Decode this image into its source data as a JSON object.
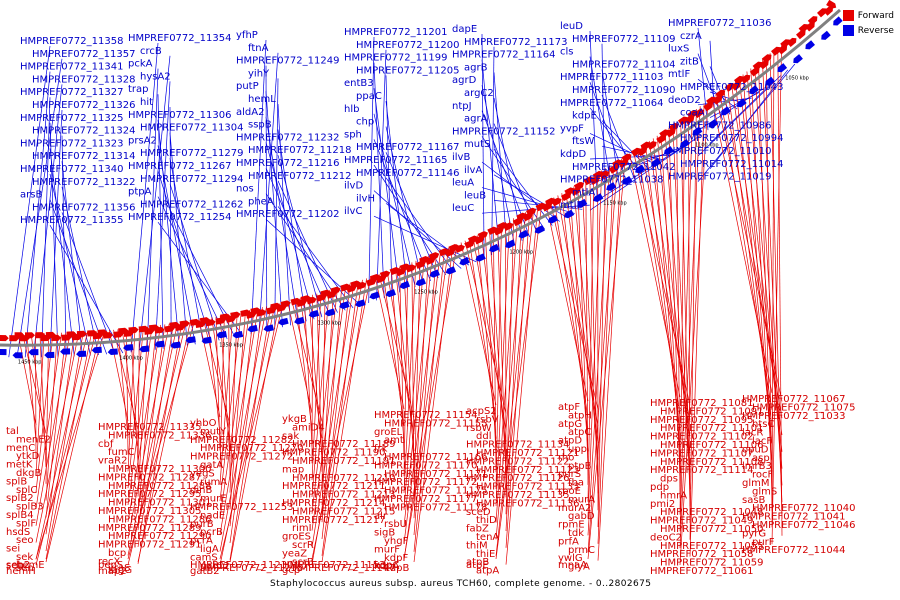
{
  "legend": {
    "items": [
      {
        "label": "Forward",
        "color": "#e60000"
      },
      {
        "label": "Reverse",
        "color": "#0000e6"
      }
    ]
  },
  "caption": "Staphylococcus aureus subsp. aureus TCH60, complete genome. - 0..2802675",
  "colors": {
    "forward": "#e60000",
    "reverse": "#0000e6",
    "backbone": "#808080"
  },
  "ticks": [
    "1450 kbp",
    "1400 kbp",
    "1350 kbp",
    "1300 kbp",
    "1250 kbp",
    "1200 kbp",
    "1150 kbp",
    "1100 kbp",
    "1050 kbp"
  ],
  "reverse_labels": [
    "HMPREF0772_11358",
    "HMPREF0772_11357",
    "HMPREF0772_11341",
    "HMPREF0772_11328",
    "HMPREF0772_11327",
    "HMPREF0772_11326",
    "HMPREF0772_11325",
    "HMPREF0772_11324",
    "HMPREF0772_11323",
    "HMPREF0772_11314",
    "HMPREF0772_11340",
    "HMPREF0772_11322",
    "arsB",
    "HMPREF0772_11356",
    "HMPREF0772_11355",
    "HMPREF0772_11354",
    "crcB",
    "pckA",
    "hysA2",
    "trap",
    "hit",
    "HMPREF0772_11306",
    "HMPREF0772_11304",
    "prsA2",
    "HMPREF0772_11279",
    "HMPREF0772_11267",
    "HMPREF0772_11294",
    "ptpA",
    "HMPREF0772_11262",
    "HMPREF0772_11254",
    "yfhP",
    "ftnA",
    "HMPREF0772_11249",
    "yihY",
    "putP",
    "hemL",
    "aldA2",
    "sspB",
    "HMPREF0772_11232",
    "HMPREF0772_11218",
    "HMPREF0772_11216",
    "HMPREF0772_11212",
    "nos",
    "pheA",
    "HMPREF0772_11202",
    "HMPREF0772_11201",
    "HMPREF0772_11200",
    "HMPREF0772_11199",
    "HMPREF0772_11205",
    "entB3",
    "ppaC",
    "hlb",
    "chp",
    "sph",
    "HMPREF0772_11167",
    "HMPREF0772_11165",
    "HMPREF0772_11146",
    "ilvD",
    "ilvH",
    "ilvC",
    "dapE",
    "HMPREF0772_11173",
    "HMPREF0772_11164",
    "agrB",
    "agrD",
    "argC2",
    "ntpJ",
    "agrA",
    "HMPREF0772_11152",
    "mutS",
    "ilvB",
    "ilvA",
    "leuA",
    "leuB",
    "leuC",
    "leuD",
    "HMPREF0772_11109",
    "cls",
    "HMPREF0772_11104",
    "HMPREF0772_11103",
    "HMPREF0772_11090",
    "HMPREF0772_11064",
    "kdpE",
    "yvpF",
    "ftsW",
    "kdpD",
    "HMPREF0772_11042",
    "HMPREF0772_11038",
    "mtlA",
    "mtlD",
    "HMPREF0772_11036",
    "czrA",
    "luxS",
    "zitB",
    "mtlF",
    "HMPREF0772_11043",
    "deoD2",
    "coaA",
    "HMPREF0772_10986",
    "HMPREF0772_10994",
    "HMPREF0772_11010",
    "HMPREF0772_11014",
    "HMPREF0772_11019"
  ],
  "forward_labels": [
    "tal",
    "menE2",
    "menC",
    "ytkD",
    "metK",
    "dkgB",
    "splB",
    "splC",
    "splB2",
    "splB3",
    "splB4",
    "splF",
    "hsdS",
    "seo",
    "sei",
    "sek",
    "seb",
    "hemE",
    "hemH",
    "sen",
    "seb2",
    "HMPREF0772_11335",
    "HMPREF0772_11336",
    "cbf",
    "fumC",
    "vraR2",
    "HMPREF0772_11300",
    "HMPREF0772_11287",
    "HMPREF0772_11288",
    "HMPREF0772_11295",
    "HMPREF0772_11301",
    "HMPREF0772_11305",
    "HMPREF0772_11286",
    "HMPREF0772_11289",
    "HMPREF0772_11290",
    "HMPREF0772_11291",
    "bcp",
    "recX",
    "tagG",
    "map2",
    "vraS",
    "pepS",
    "yhbO",
    "mutY",
    "HMPREF0772_11282",
    "HMPREF0772_11270",
    "HMPREF0772_11272",
    "gatA",
    "yegS",
    "rumA",
    "dinB",
    "murE",
    "HMPREF0772_11253",
    "nadE",
    "purB",
    "pcrB",
    "pcrA",
    "ligA",
    "camS",
    "gatC2",
    "gatB2",
    "HMPREF0772_11235",
    "HMPREF0772_11230",
    "ykgB",
    "amiD4",
    "sak",
    "HMPREF0772_11189",
    "HMPREF0772_11190",
    "HMPREF0772_11191",
    "map",
    "HMPREF0772_11210",
    "HMPREF0772_11211",
    "HMPREF0772_11213",
    "HMPREF0772_11214",
    "HMPREF0772_11215",
    "HMPREF0772_11217",
    "rimI",
    "groES",
    "scrR",
    "yeaZ",
    "scrB",
    "gcp",
    "HMPREF0772_11147",
    "HMPREF0772_11153",
    "HMPREF0772_11154",
    "HMPREF0772_11155",
    "groEL",
    "amt",
    "frk",
    "HMPREF0772_11166",
    "HMPREF0772_11170",
    "HMPREF0772_11171",
    "HMPREF0772_11172",
    "HMPREF0772_11175",
    "HMPREF0772_11177",
    "HMPREF0772_11178",
    "alr",
    "rsbU",
    "sigB",
    "yhgF",
    "murF",
    "kdpF",
    "kdpA",
    "kdpB",
    "kdpC",
    "acpS2",
    "rsbV",
    "rsbW",
    "ddl",
    "HMPREF0772_11134",
    "HMPREF0772_11121",
    "HMPREF0772_11122",
    "HMPREF0772_11123",
    "HMPREF0772_11126",
    "HMPREF0772_11133",
    "HMPREF0772_11135",
    "HMPREF0772_11136",
    "sceD",
    "thiD",
    "fabZ",
    "tenA",
    "thiM",
    "thiE",
    "atpB",
    "atpA",
    "atpE",
    "atpF",
    "atpH",
    "atpG",
    "atpC",
    "atpD",
    "upp",
    "rho",
    "ptpB",
    "purS",
    "fba",
    "rpoE",
    "murA",
    "murA2",
    "gabD",
    "rpmE",
    "tdk",
    "prfA",
    "prmC",
    "ywlG",
    "glyA",
    "mnaA",
    "HMPREF0772_11081",
    "HMPREF0772_11091",
    "HMPREF0772_11095",
    "HMPREF0772_11101",
    "HMPREF0772_11102",
    "HMPREF0772_11106",
    "HMPREF0772_11107",
    "HMPREF0772_11108",
    "HMPREF0772_11114",
    "dps",
    "pdp",
    "hmrA",
    "pmi2",
    "HMPREF0772_11048",
    "HMPREF0772_11049",
    "HMPREF0772_11050",
    "deoC2",
    "HMPREF0772_11055",
    "HMPREF0772_11058",
    "HMPREF0772_11059",
    "HMPREF0772_11061",
    "HMPREF0772_11067",
    "HMPREF0772_11075",
    "HMPREF0772_11033",
    "htsC",
    "lacR",
    "lacF",
    "opuD",
    "asp",
    "lmrB3",
    "rocF",
    "glmM",
    "glmS",
    "sasB",
    "HMPREF0772_11040",
    "HMPREF0772_11041",
    "HMPREF0772_11046",
    "pyrG",
    "purF",
    "HMPREF0772_11044"
  ]
}
